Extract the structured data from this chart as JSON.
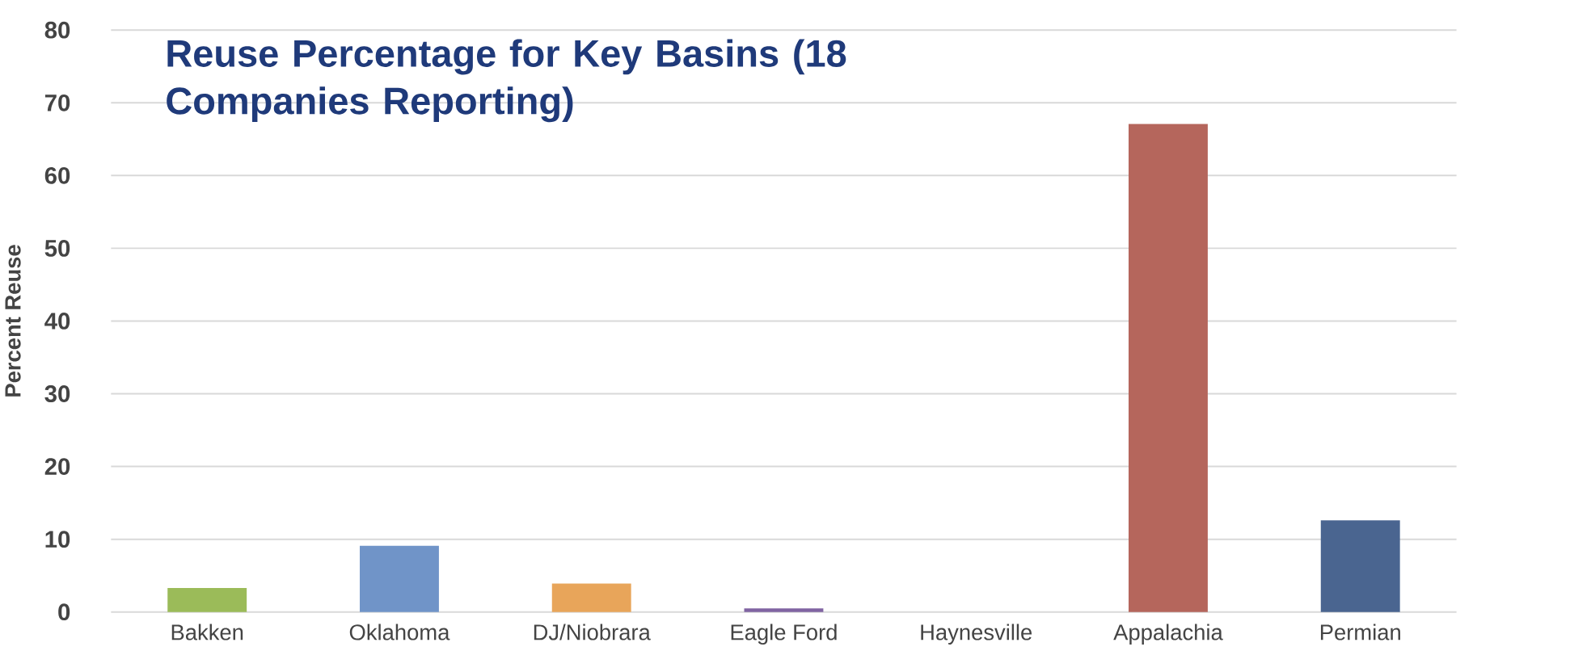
{
  "chart_data": {
    "type": "bar",
    "title": "Reuse Percentage for Key Basins (18 Companies Reporting)",
    "ylabel": "Percent Reuse",
    "categories": [
      "Bakken",
      "Oklahoma",
      "DJ/Niobrara",
      "Eagle Ford",
      "Haynesville",
      "Appalachia",
      "Permian"
    ],
    "values": [
      3.3,
      9.1,
      3.9,
      0.5,
      0,
      67.1,
      12.6
    ],
    "colors": [
      "#9bbb59",
      "#7094c8",
      "#e8a55a",
      "#8064a2",
      "#8fa8c8",
      "#b5665c",
      "#4a6590"
    ],
    "ylim": [
      0,
      80
    ],
    "yticks": [
      0,
      10,
      20,
      30,
      40,
      50,
      60,
      70,
      80
    ],
    "grid": "y"
  }
}
